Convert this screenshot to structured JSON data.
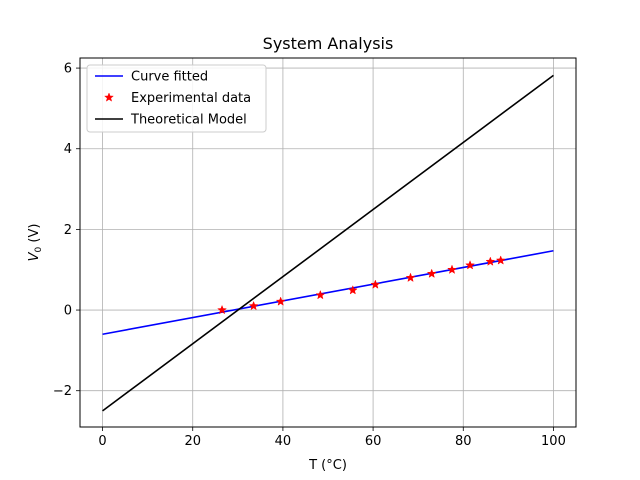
{
  "chart_data": {
    "type": "line",
    "title": "System Analysis",
    "xlabel": "T (°C)",
    "ylabel_main": "V",
    "ylabel_sub": "0",
    "ylabel_unit": " (V)",
    "xlim": [
      -5,
      105
    ],
    "ylim": [
      -2.9,
      6.25
    ],
    "xticks": [
      0,
      20,
      40,
      60,
      80,
      100
    ],
    "yticks": [
      -2,
      0,
      2,
      4,
      6
    ],
    "grid": true,
    "legend_position": "top-left",
    "series": [
      {
        "name": "Curve fitted",
        "kind": "line",
        "color": "#0000ff",
        "x": [
          0,
          100
        ],
        "y": [
          -0.6,
          1.47
        ]
      },
      {
        "name": "Experimental data",
        "kind": "scatter",
        "marker": "star",
        "color": "#ff0000",
        "x": [
          26.5,
          33.5,
          39.5,
          48.3,
          55.5,
          60.5,
          68.3,
          73.0,
          77.5,
          81.5,
          86.0,
          88.3
        ],
        "y": [
          0.0,
          0.1,
          0.21,
          0.37,
          0.49,
          0.63,
          0.8,
          0.9,
          1.0,
          1.11,
          1.2,
          1.23
        ]
      },
      {
        "name": "Theoretical Model",
        "kind": "line",
        "color": "#000000",
        "x": [
          0,
          100
        ],
        "y": [
          -2.5,
          5.82
        ]
      }
    ]
  }
}
